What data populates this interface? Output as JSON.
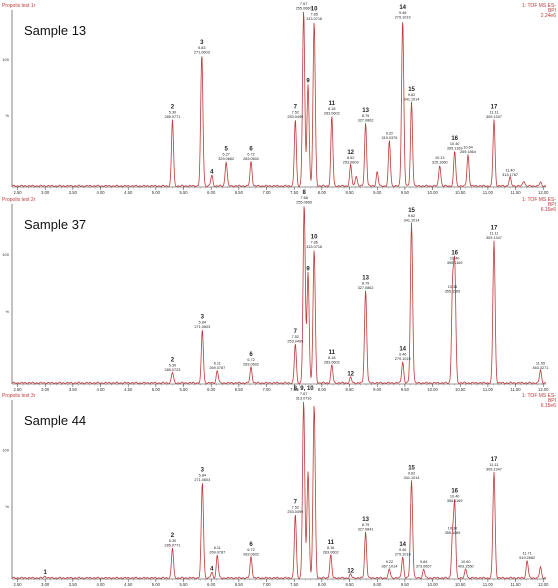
{
  "header_text": "Propolis test",
  "detector_line1": "1: TOF MS ES-",
  "detector_line2": "BPI",
  "x_tick_step": 0.5,
  "x_tick_labels": [
    "2.50",
    "3.00",
    "3.50",
    "4.00",
    "4.50",
    "5.00",
    "5.50",
    "6.00",
    "6.50",
    "7.00",
    "7.50",
    "8.00",
    "8.50",
    "9.00",
    "9.50",
    "10.00",
    "10.50",
    "11.00",
    "11.50",
    "12.00"
  ],
  "y_tick_labels": [
    "100",
    "%"
  ],
  "colors": {
    "trace": "#c0393b",
    "labels": "#222222",
    "header": "#c0393b"
  },
  "chart_data": [
    {
      "type": "line",
      "title": "Sample 13",
      "file_suffix": "1r",
      "intensity": "2.24e6",
      "xlim": [
        2.4,
        12.05
      ],
      "ylim": [
        0,
        100
      ],
      "peaks": [
        {
          "id": "2",
          "rt": 5.3,
          "h": 38,
          "label": [
            "2",
            "5.30",
            "285.0771"
          ]
        },
        {
          "id": "3",
          "rt": 5.83,
          "h": 75,
          "label": [
            "3",
            "5.83",
            "271.0603"
          ]
        },
        {
          "id": "4",
          "rt": 6.01,
          "h": 6,
          "label": [
            "4",
            ""
          ]
        },
        {
          "id": "5",
          "rt": 6.27,
          "h": 14,
          "label": [
            "5",
            "6.27",
            "329.0662"
          ]
        },
        {
          "id": "6",
          "rt": 6.72,
          "h": 14,
          "label": [
            "6",
            "6.72",
            "283.0602"
          ]
        },
        {
          "id": "7",
          "rt": 7.52,
          "h": 38,
          "label": [
            "7",
            "7.52",
            "253.0499"
          ]
        },
        {
          "id": "8",
          "rt": 7.67,
          "h": 100,
          "label": [
            "8",
            "7.67",
            "255.0660"
          ]
        },
        {
          "id": "9",
          "rt": 7.75,
          "h": 58,
          "label": [
            "9",
            ""
          ]
        },
        {
          "id": "10",
          "rt": 7.86,
          "h": 94,
          "label": [
            "10",
            "7.85",
            "313.0716"
          ]
        },
        {
          "id": "11",
          "rt": 8.18,
          "h": 40,
          "label": [
            "11",
            "8.18",
            "283.0602"
          ]
        },
        {
          "id": "12",
          "rt": 8.52,
          "h": 12,
          "label": [
            "12",
            "8.52",
            "253.0609"
          ]
        },
        {
          "id": "",
          "rt": 8.62,
          "h": 6
        },
        {
          "id": "13",
          "rt": 8.79,
          "h": 36,
          "label": [
            "13",
            "8.79",
            "327.0862"
          ]
        },
        {
          "id": "",
          "rt": 9.0,
          "h": 8
        },
        {
          "id": "",
          "rt": 9.22,
          "h": 26,
          "label": [
            "",
            "9.22",
            "319.0376"
          ]
        },
        {
          "id": "14",
          "rt": 9.46,
          "h": 95,
          "label": [
            "14",
            "9.46",
            "279.1019"
          ]
        },
        {
          "id": "15",
          "rt": 9.62,
          "h": 48,
          "label": [
            "15",
            "9.62",
            "341.1014"
          ]
        },
        {
          "id": "",
          "rt": 10.13,
          "h": 12,
          "label": [
            "",
            "10.13",
            "315.1660"
          ]
        },
        {
          "id": "16",
          "rt": 10.4,
          "h": 20,
          "label": [
            "16",
            "10.40",
            "355.1169"
          ]
        },
        {
          "id": "",
          "rt": 10.64,
          "h": 18,
          "label": [
            "",
            "10.64",
            "269.1864"
          ]
        },
        {
          "id": "17",
          "rt": 11.11,
          "h": 38,
          "label": [
            "17",
            "11.11",
            "309.1347"
          ]
        },
        {
          "id": "",
          "rt": 11.4,
          "h": 5,
          "label": [
            "",
            "11.40",
            "313.1787"
          ]
        },
        {
          "id": "",
          "rt": 11.65,
          "h": 3
        },
        {
          "id": "",
          "rt": 11.95,
          "h": 2
        }
      ]
    },
    {
      "type": "line",
      "title": "Sample 37",
      "file_suffix": "2r",
      "intensity": "6.15e6",
      "xlim": [
        2.4,
        12.05
      ],
      "ylim": [
        0,
        100
      ],
      "peaks": [
        {
          "id": "2",
          "rt": 5.3,
          "h": 6,
          "label": [
            "2",
            "5.30",
            "285.0723"
          ]
        },
        {
          "id": "3",
          "rt": 5.84,
          "h": 30,
          "label": [
            "3",
            "5.84",
            "271.0603"
          ]
        },
        {
          "id": "",
          "rt": 6.11,
          "h": 7,
          "label": [
            "",
            "6.11",
            "269.0787"
          ]
        },
        {
          "id": "6",
          "rt": 6.72,
          "h": 9,
          "label": [
            "6",
            "6.72",
            "283.0602"
          ]
        },
        {
          "id": "7",
          "rt": 7.52,
          "h": 22,
          "label": [
            "7",
            "7.52",
            "253.0499"
          ]
        },
        {
          "id": "8",
          "rt": 7.68,
          "h": 100,
          "label": [
            "8",
            "7.68",
            "255.0660"
          ]
        },
        {
          "id": "9",
          "rt": 7.75,
          "h": 62,
          "label": [
            "9",
            ""
          ]
        },
        {
          "id": "10",
          "rt": 7.86,
          "h": 75,
          "label": [
            "10",
            "7.86",
            "313.0716"
          ]
        },
        {
          "id": "11",
          "rt": 8.18,
          "h": 10,
          "label": [
            "11",
            "8.18",
            "283.0602"
          ]
        },
        {
          "id": "12",
          "rt": 8.52,
          "h": 3,
          "label": [
            "12",
            ""
          ]
        },
        {
          "id": "13",
          "rt": 8.79,
          "h": 52,
          "label": [
            "13",
            "8.79",
            "327.0862"
          ]
        },
        {
          "id": "14",
          "rt": 9.46,
          "h": 12,
          "label": [
            "14",
            "9.46",
            "279.1019"
          ]
        },
        {
          "id": "15",
          "rt": 9.62,
          "h": 90,
          "label": [
            "15",
            "9.62",
            "341.1014"
          ]
        },
        {
          "id": "",
          "rt": 10.36,
          "h": 50,
          "label": [
            "",
            "10.36",
            "355.1169"
          ]
        },
        {
          "id": "16",
          "rt": 10.4,
          "h": 66,
          "label": [
            "16",
            "10.40",
            "355.1169"
          ]
        },
        {
          "id": "17",
          "rt": 11.11,
          "h": 80,
          "label": [
            "17",
            "11.11",
            "309.1347"
          ]
        },
        {
          "id": "",
          "rt": 11.95,
          "h": 7,
          "label": [
            "",
            "11.95",
            "463.3271"
          ]
        }
      ]
    },
    {
      "type": "line",
      "title": "Sample 44",
      "file_suffix": "3r",
      "intensity": "6.15e6",
      "xlim": [
        2.4,
        12.05
      ],
      "ylim": [
        0,
        100
      ],
      "peaks": [
        {
          "id": "1",
          "rt": 3.0,
          "h": 1,
          "label": [
            "1",
            ""
          ]
        },
        {
          "id": "2",
          "rt": 5.3,
          "h": 17,
          "label": [
            "2",
            "5.30",
            "285.0771"
          ]
        },
        {
          "id": "3",
          "rt": 5.84,
          "h": 54,
          "label": [
            "3",
            "5.84",
            "271.0603"
          ]
        },
        {
          "id": "4",
          "rt": 6.01,
          "h": 3,
          "label": [
            "4",
            ""
          ]
        },
        {
          "id": "",
          "rt": 6.11,
          "h": 13,
          "label": [
            "",
            "6.11",
            "269.0787"
          ]
        },
        {
          "id": "6",
          "rt": 6.72,
          "h": 12,
          "label": [
            "6",
            "6.72",
            "283.0602"
          ]
        },
        {
          "id": "7",
          "rt": 7.52,
          "h": 36,
          "label": [
            "7",
            "7.52",
            "253.0499"
          ]
        },
        {
          "id": "8, 9, 10",
          "rt": 7.67,
          "h": 100,
          "label": [
            "8, 9, 10",
            "7.67",
            "313.0716"
          ]
        },
        {
          "id": "",
          "rt": 7.75,
          "h": 60
        },
        {
          "id": "",
          "rt": 7.86,
          "h": 98
        },
        {
          "id": "11",
          "rt": 8.16,
          "h": 13,
          "label": [
            "11",
            "8.16",
            "283.0602"
          ]
        },
        {
          "id": "12",
          "rt": 8.52,
          "h": 2,
          "label": [
            "12",
            ""
          ]
        },
        {
          "id": "13",
          "rt": 8.79,
          "h": 26,
          "label": [
            "13",
            "8.79",
            "327.0841"
          ]
        },
        {
          "id": "",
          "rt": 9.22,
          "h": 5,
          "label": [
            "",
            "9.22",
            "367.1014"
          ]
        },
        {
          "id": "14",
          "rt": 9.46,
          "h": 12,
          "label": [
            "14",
            "9.46",
            "279.1019"
          ]
        },
        {
          "id": "",
          "rt": 9.84,
          "h": 5,
          "label": [
            "",
            "9.84",
            "373.0657"
          ]
        },
        {
          "id": "15",
          "rt": 9.62,
          "h": 55,
          "label": [
            "15",
            "9.62",
            "341.1014"
          ]
        },
        {
          "id": "",
          "rt": 10.36,
          "h": 24,
          "label": [
            "",
            "10.36",
            "355.1169"
          ]
        },
        {
          "id": "16",
          "rt": 10.4,
          "h": 42,
          "label": [
            "16",
            "10.40",
            "355.1169"
          ]
        },
        {
          "id": "",
          "rt": 10.6,
          "h": 5,
          "label": [
            "",
            "10.60",
            "403.1550"
          ]
        },
        {
          "id": "17",
          "rt": 11.11,
          "h": 60,
          "label": [
            "17",
            "11.11",
            "309.1347"
          ]
        },
        {
          "id": "",
          "rt": 11.71,
          "h": 10,
          "label": [
            "",
            "11.71",
            "519.2682"
          ]
        },
        {
          "id": "",
          "rt": 11.95,
          "h": 6
        }
      ]
    }
  ]
}
